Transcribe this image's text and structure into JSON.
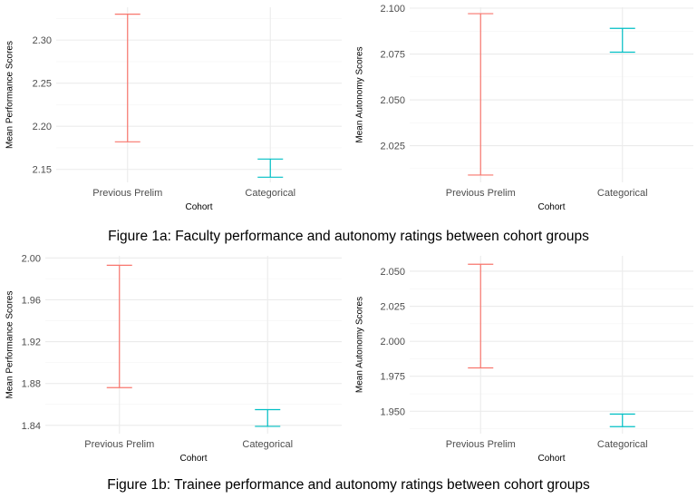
{
  "captions": {
    "figure_1a": "Figure 1a: Faculty performance and autonomy ratings between cohort groups",
    "figure_1b": "Figure 1b: Trainee performance and autonomy ratings between cohort groups"
  },
  "colors": {
    "Previous Prelim": "#F8766D",
    "Categorical": "#00BFC4",
    "grid_major": "#EBEBEB",
    "grid_minor": "#F4F4F4",
    "tick_text": "#4D4D4D",
    "axis_title": "#000000"
  },
  "chart_data": [
    {
      "type": "errorbar",
      "panel": "faculty-performance",
      "xlabel": "Cohort",
      "ylabel": "Mean Performance Scores",
      "categories": [
        "Previous Prelim",
        "Categorical"
      ],
      "ylim": [
        2.135,
        2.338
      ],
      "yticks": [
        2.15,
        2.2,
        2.25,
        2.3
      ],
      "ytick_labels": [
        "2.15",
        "2.20",
        "2.25",
        "2.30"
      ],
      "intervals": [
        {
          "category": "Previous Prelim",
          "lower": 2.182,
          "upper": 2.33
        },
        {
          "category": "Categorical",
          "lower": 2.141,
          "upper": 2.162
        }
      ],
      "grid": true
    },
    {
      "type": "errorbar",
      "panel": "faculty-autonomy",
      "xlabel": "Cohort",
      "ylabel": "Mean Autonomy Scores",
      "categories": [
        "Previous Prelim",
        "Categorical"
      ],
      "ylim": [
        2.005,
        2.1005
      ],
      "yticks": [
        2.025,
        2.05,
        2.075,
        2.1
      ],
      "ytick_labels": [
        "2.025",
        "2.050",
        "2.075",
        "2.100"
      ],
      "intervals": [
        {
          "category": "Previous Prelim",
          "lower": 2.009,
          "upper": 2.097
        },
        {
          "category": "Categorical",
          "lower": 2.076,
          "upper": 2.089
        }
      ],
      "grid": true
    },
    {
      "type": "errorbar",
      "panel": "trainee-performance",
      "xlabel": "Cohort",
      "ylabel": "Mean Performance Scores",
      "categories": [
        "Previous Prelim",
        "Categorical"
      ],
      "ylim": [
        1.832,
        2.002
      ],
      "yticks": [
        1.84,
        1.88,
        1.92,
        1.96,
        2.0
      ],
      "ytick_labels": [
        "1.84",
        "1.88",
        "1.92",
        "1.96",
        "2.00"
      ],
      "intervals": [
        {
          "category": "Previous Prelim",
          "lower": 1.876,
          "upper": 1.993
        },
        {
          "category": "Categorical",
          "lower": 1.839,
          "upper": 1.855
        }
      ],
      "grid": true
    },
    {
      "type": "errorbar",
      "panel": "trainee-autonomy",
      "xlabel": "Cohort",
      "ylabel": "Mean Autonomy Scores",
      "categories": [
        "Previous Prelim",
        "Categorical"
      ],
      "ylim": [
        1.934,
        2.061
      ],
      "yticks": [
        1.95,
        1.975,
        2.0,
        2.025,
        2.05
      ],
      "ytick_labels": [
        "1.950",
        "1.975",
        "2.000",
        "2.025",
        "2.050"
      ],
      "intervals": [
        {
          "category": "Previous Prelim",
          "lower": 1.981,
          "upper": 2.055
        },
        {
          "category": "Categorical",
          "lower": 1.939,
          "upper": 1.948
        }
      ],
      "grid": true
    }
  ]
}
